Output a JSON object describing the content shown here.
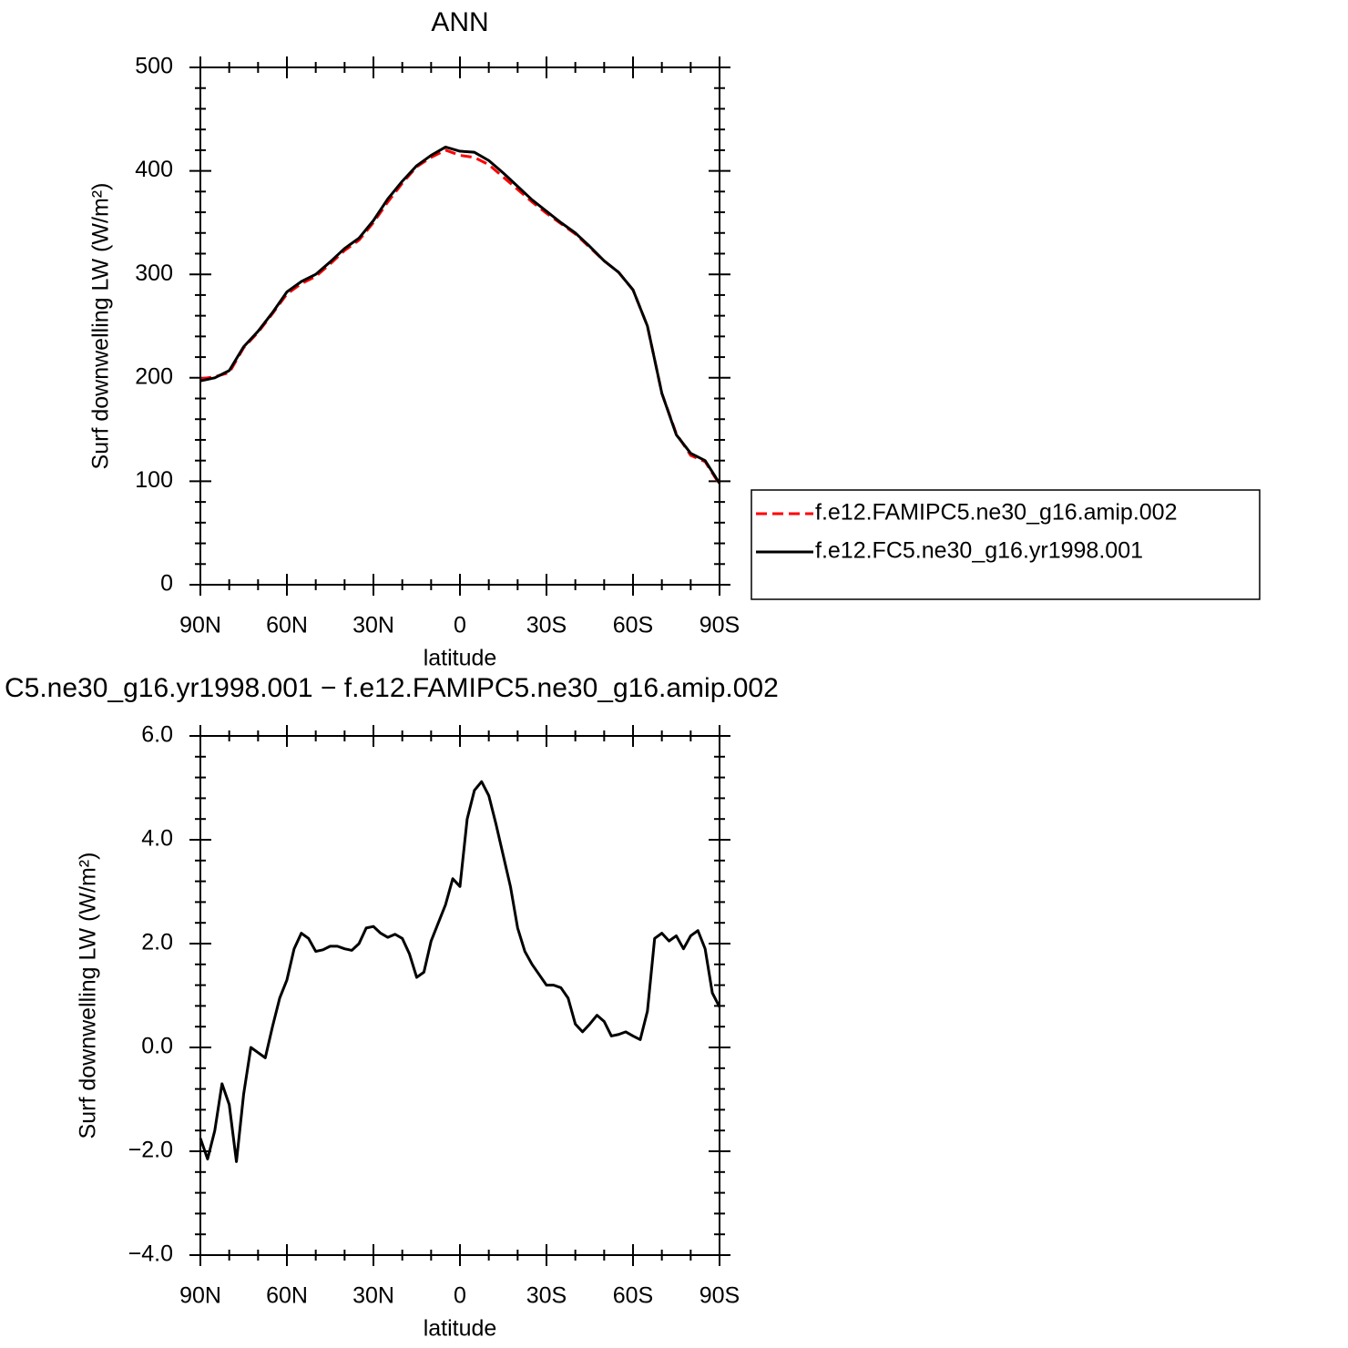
{
  "chart_data": [
    {
      "type": "line",
      "title": "ANN",
      "xlabel": "latitude",
      "ylabel": "Surf downwelling LW (W/m²)",
      "x": [
        90,
        85,
        80,
        75,
        70,
        65,
        60,
        55,
        50,
        45,
        40,
        35,
        30,
        25,
        20,
        15,
        10,
        5,
        0,
        -5,
        -10,
        -15,
        -20,
        -25,
        -30,
        -35,
        -40,
        -45,
        -50,
        -55,
        -60,
        -65,
        -70,
        -75,
        -80,
        -85,
        -90
      ],
      "series": [
        {
          "name": "f.e12.FAMIPC5.ne30_g16.amip.002",
          "color": "#ff0000",
          "line_style": "dashed",
          "values": [
            199,
            201,
            205,
            229,
            244,
            262,
            281,
            291,
            298,
            310,
            323,
            333,
            350,
            370,
            388,
            404,
            413,
            420,
            415,
            413,
            406,
            394,
            382,
            370,
            359,
            349,
            339,
            326,
            313,
            302,
            285,
            250,
            185,
            146,
            125,
            119,
            97
          ]
        },
        {
          "name": "f.e12.FC5.ne30_g16.yr1998.001",
          "color": "#000000",
          "line_style": "solid",
          "values": [
            197,
            200,
            207,
            230,
            245,
            263,
            283,
            293,
            300,
            312,
            325,
            335,
            352,
            373,
            390,
            405,
            415,
            423,
            419,
            418,
            410,
            398,
            385,
            372,
            361,
            350,
            340,
            327,
            313,
            302,
            285,
            250,
            185,
            145,
            127,
            120,
            98
          ]
        }
      ],
      "xlim": [
        90,
        -90
      ],
      "xticks": [
        {
          "value": 90,
          "label": "90N"
        },
        {
          "value": 60,
          "label": "60N"
        },
        {
          "value": 30,
          "label": "30N"
        },
        0,
        {
          "value": -30,
          "label": "30S"
        },
        {
          "value": -60,
          "label": "60S"
        },
        {
          "value": -90,
          "label": "90S"
        }
      ],
      "ylim": [
        0,
        500
      ],
      "yticks": [
        0,
        100,
        200,
        300,
        400,
        500
      ],
      "legend": "right"
    },
    {
      "type": "line",
      "title": "C5.ne30_g16.yr1998.001 − f.e12.FAMIPC5.ne30_g16.amip.002",
      "xlabel": "latitude",
      "ylabel": "Surf downwelling LW (W/m²)",
      "x": [
        90,
        87.5,
        85,
        82.5,
        80,
        77.5,
        75,
        72.5,
        70,
        67.5,
        65,
        62.5,
        60,
        57.5,
        55,
        52.5,
        50,
        47.5,
        45,
        42.5,
        40,
        37.5,
        35,
        32.5,
        30,
        27.5,
        25,
        22.5,
        20,
        17.5,
        15,
        12.5,
        10,
        7.5,
        5,
        2.5,
        0,
        -2.5,
        -5,
        -7.5,
        -10,
        -12.5,
        -15,
        -17.5,
        -20,
        -22.5,
        -25,
        -27.5,
        -30,
        -32.5,
        -35,
        -37.5,
        -40,
        -42.5,
        -45,
        -47.5,
        -50,
        -52.5,
        -55,
        -57.5,
        -60,
        -62.5,
        -65,
        -67.5,
        -70,
        -72.5,
        -75,
        -77.5,
        -80,
        -82.5,
        -85,
        -87.5,
        -90
      ],
      "series": [
        {
          "color": "#000000",
          "line_style": "solid",
          "values": [
            -1.75,
            -2.15,
            -1.6,
            -0.7,
            -1.1,
            -2.2,
            -0.9,
            0.0,
            -0.1,
            -0.2,
            0.4,
            0.95,
            1.3,
            1.9,
            2.2,
            2.1,
            1.85,
            1.88,
            1.95,
            1.95,
            1.9,
            1.87,
            2.0,
            2.3,
            2.33,
            2.2,
            2.12,
            2.18,
            2.1,
            1.8,
            1.35,
            1.45,
            2.05,
            2.4,
            2.75,
            3.25,
            3.1,
            4.4,
            4.95,
            5.12,
            4.85,
            4.3,
            3.7,
            3.1,
            2.3,
            1.85,
            1.6,
            1.4,
            1.2,
            1.2,
            1.15,
            0.95,
            0.45,
            0.3,
            0.45,
            0.62,
            0.5,
            0.22,
            0.25,
            0.3,
            0.22,
            0.15,
            0.7,
            2.1,
            2.2,
            2.05,
            2.15,
            1.9,
            2.15,
            2.25,
            1.9,
            1.05,
            0.78
          ]
        }
      ],
      "xlim": [
        90,
        -90
      ],
      "xticks": [
        {
          "value": 90,
          "label": "90N"
        },
        {
          "value": 60,
          "label": "60N"
        },
        {
          "value": 30,
          "label": "30N"
        },
        0,
        {
          "value": -30,
          "label": "30S"
        },
        {
          "value": -60,
          "label": "60S"
        },
        {
          "value": -90,
          "label": "90S"
        }
      ],
      "ylim": [
        -4,
        6
      ],
      "yticks": [
        {
          "value": -4,
          "label": "−4.0"
        },
        {
          "value": -2,
          "label": "−2.0"
        },
        {
          "value": 0,
          "label": "0.0"
        },
        {
          "value": 2,
          "label": "2.0"
        },
        {
          "value": 4,
          "label": "4.0"
        },
        {
          "value": 6,
          "label": "6.0"
        }
      ]
    }
  ]
}
